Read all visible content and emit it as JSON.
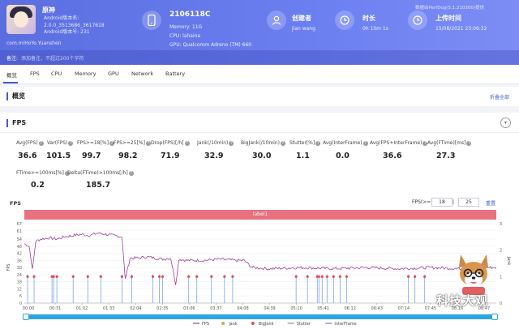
{
  "header": {
    "app_name": "原神",
    "app_meta": [
      "Android版本名:",
      "2.0.0_3513686_3617618",
      "Android版本号: 231"
    ],
    "package": "com.miHoYo.Yuanshen",
    "device_id": "2106118C",
    "device_lines": [
      "Memory: 11G",
      "CPU: lahaina",
      "GPU: Qualcomm Adreno (TM) 660"
    ],
    "creator_title": "创建者",
    "creator_value": "jian wang",
    "duration_title": "时长",
    "duration_value": "0h 10m 1s",
    "upload_title": "上传时间",
    "upload_value": "15/08/2021 23:06:32",
    "data_source": "数据由PerfDog(5.1.210300)提供",
    "remark_label": "备注:",
    "remark_placeholder": "添加备注，不超过200个字符"
  },
  "tabs": [
    "概览",
    "FPS",
    "CPU",
    "Memory",
    "GPU",
    "Network",
    "Battery"
  ],
  "overview": {
    "title": "概览",
    "collapse_all": "折叠全部"
  },
  "fps_section": {
    "title": "FPS",
    "toggle": "▾",
    "metrics_row1": [
      {
        "label": "Avg(FPS)",
        "value": "36.6"
      },
      {
        "label": "Var(FPS)",
        "value": "101.5"
      },
      {
        "label": "FPS>=18[%]",
        "value": "99.7"
      },
      {
        "label": "FPS>=25[%]",
        "value": "98.2"
      },
      {
        "label": "Drop(FPS)[/h]",
        "value": "71.9"
      },
      {
        "label": "Jank(/10min)",
        "value": "32.9"
      },
      {
        "label": "BigJank(/10min)",
        "value": "30.0"
      },
      {
        "label": "Stutter[%]",
        "value": "1.1"
      },
      {
        "label": "Avg(InterFrame)",
        "value": "0.0"
      },
      {
        "label": "Avg(FPS+InterFrame)",
        "value": "36.6"
      },
      {
        "label": "Avg(FTime)[ms]",
        "value": "27.3"
      }
    ],
    "metrics_row2": [
      {
        "label": "FTime>=100ms[%]",
        "value": "0.2"
      },
      {
        "label": "Delta(FTime)>100ms[/h]",
        "value": "185.7"
      }
    ]
  },
  "chart": {
    "title": "FPS",
    "fps_ctrl_label": "FPS(>=):",
    "fps_min": "18",
    "fps_sep": "|",
    "fps_max": "25",
    "reset": "重置",
    "label_bar": "label1",
    "y_axis_name": "FPS",
    "y2_axis_name": "Jank"
  },
  "chart_data": {
    "type": "line",
    "x_ticks": [
      "00:00",
      "00:31",
      "01:02",
      "01:33",
      "02:04",
      "02:35",
      "03:06",
      "03:37",
      "04:08",
      "04:39",
      "05:10",
      "05:41",
      "06:12",
      "06:43",
      "07:14",
      "07:45",
      "08:16",
      "08:47"
    ],
    "y_ticks": [
      "0",
      "6",
      "12",
      "18",
      "24",
      "30",
      "36",
      "42",
      "48",
      "54",
      "61",
      "67"
    ],
    "y2_ticks": [
      "0",
      "1",
      "2",
      "3"
    ],
    "ylim": [
      0,
      67
    ],
    "y2lim": [
      0,
      3
    ],
    "legend": [
      "FPS",
      "Jank",
      "BigJank",
      "Stutter",
      "InterFrame"
    ],
    "colors": {
      "fps": "#a03ca0",
      "jank": "#e0a040",
      "bigjank": "#e05050",
      "stutter": "#909090",
      "interframe": "#8a6ad8",
      "spike": "#5b8de0"
    },
    "series": [
      {
        "name": "FPS",
        "x": [
          0,
          6,
          10,
          14,
          20,
          30,
          40,
          50,
          60,
          70,
          80,
          90,
          100,
          110,
          120,
          124,
          130,
          140,
          150,
          160,
          170,
          180,
          186,
          190,
          200,
          210,
          220,
          240,
          260,
          270,
          280,
          300,
          340,
          380,
          420,
          460,
          500,
          540,
          560,
          570,
          580
        ],
        "y": [
          50,
          48,
          28,
          52,
          54,
          55,
          54,
          56,
          57,
          58,
          57,
          59,
          58,
          57,
          56,
          20,
          38,
          38,
          39,
          38,
          37,
          38,
          16,
          37,
          36,
          36,
          36,
          37,
          36,
          36,
          30,
          29,
          30,
          29,
          30,
          29,
          30,
          29,
          30,
          30,
          30
        ]
      }
    ],
    "jank_x": [
      4,
      12,
      34,
      36,
      40,
      60,
      78,
      94,
      120,
      132,
      158,
      166,
      170,
      202,
      212,
      230,
      246,
      256,
      334,
      348,
      360,
      362,
      366,
      372,
      380,
      388,
      396,
      472,
      480,
      492
    ],
    "jank_y": [
      1,
      1,
      1,
      1,
      1,
      1,
      1,
      1,
      1,
      1,
      1,
      1,
      1,
      1,
      1,
      1,
      1,
      1,
      1,
      1,
      1,
      1,
      1,
      1,
      1,
      1,
      1,
      1,
      1,
      1
    ]
  }
}
